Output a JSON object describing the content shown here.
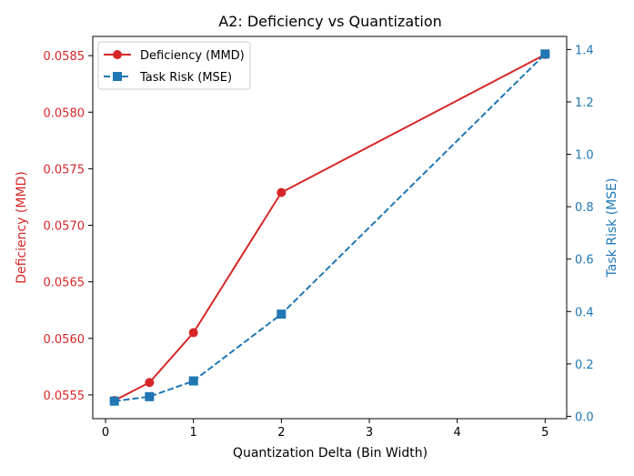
{
  "chart_data": {
    "type": "line",
    "title": "A2: Deficiency vs Quantization",
    "xlabel": "Quantization Delta (Bin Width)",
    "x": [
      0.1,
      0.5,
      1,
      2,
      5
    ],
    "xlim": [
      -0.145,
      5.245
    ],
    "xticks": [
      0,
      1,
      2,
      3,
      4,
      5
    ],
    "xtick_labels": [
      "0",
      "1",
      "2",
      "3",
      "4",
      "5"
    ],
    "grid": false,
    "legend_position": "top-left",
    "series": [
      {
        "name": "Deficiency (MMD)",
        "axis": "left",
        "color": "#d62728",
        "marker": "circle",
        "linestyle": "solid",
        "values": [
          0.05545,
          0.05561,
          0.05605,
          0.05729,
          0.05851
        ]
      },
      {
        "name": "Task Risk (MSE)",
        "axis": "right",
        "color": "#1f77b4",
        "marker": "square",
        "linestyle": "dashed",
        "values": [
          0.058,
          0.075,
          0.135,
          0.39,
          1.383
        ]
      }
    ],
    "left_axis": {
      "label": "Deficiency (MMD)",
      "color": "#d62728",
      "ylim": [
        0.05529,
        0.05867
      ],
      "ticks": [
        0.0555,
        0.056,
        0.0565,
        0.057,
        0.0575,
        0.058,
        0.0585
      ],
      "tick_labels": [
        "0.0555",
        "0.0560",
        "0.0565",
        "0.0570",
        "0.0575",
        "0.0580",
        "0.0585"
      ]
    },
    "right_axis": {
      "label": "Task Risk (MSE)",
      "color": "#1f77b4",
      "ylim": [
        -0.009,
        1.45
      ],
      "ticks": [
        0,
        0.2,
        0.4,
        0.6,
        0.8,
        1.0,
        1.2,
        1.4
      ],
      "tick_labels": [
        "0.0",
        "0.2",
        "0.4",
        "0.6",
        "0.8",
        "1.0",
        "1.2",
        "1.4"
      ]
    }
  }
}
